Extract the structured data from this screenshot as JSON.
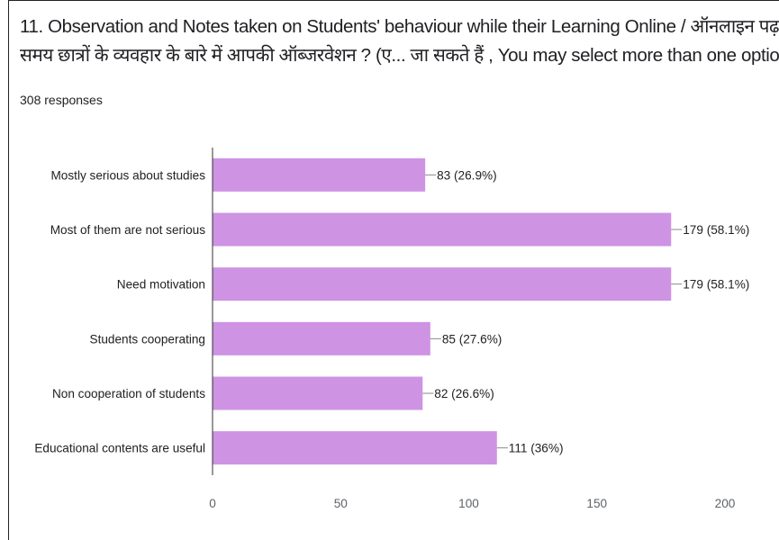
{
  "question": {
    "title_line1": "11. Observation and Notes taken on Students' behaviour while their Learning Online / ऑनलाइन पढ़ाते",
    "title_line2": "समय छात्रों के व्यवहार के बारे में आपकी ऑब्जरवेशन ? (ए... जा सकते हैं , You may select more than one option. )",
    "responses": "308 responses"
  },
  "colors": {
    "bar": "#ce93e3",
    "axis": "#333333",
    "leader": "#888888"
  },
  "chart_data": {
    "type": "bar",
    "orientation": "horizontal",
    "categories": [
      "Mostly serious about studies",
      "Most of them are not serious",
      "Need motivation",
      "Students cooperating",
      "Non cooperation of students",
      "Educational contents are useful"
    ],
    "values": [
      83,
      179,
      179,
      85,
      82,
      111
    ],
    "value_labels": [
      "83 (26.9%)",
      "179 (58.1%)",
      "179 (58.1%)",
      "85 (27.6%)",
      "82 (26.6%)",
      "111 (36%)"
    ],
    "xlim": [
      0,
      200
    ],
    "xticks": [
      0,
      50,
      100,
      150,
      200
    ],
    "xtick_labels": [
      "0",
      "50",
      "100",
      "150",
      "200"
    ],
    "grid": false
  }
}
